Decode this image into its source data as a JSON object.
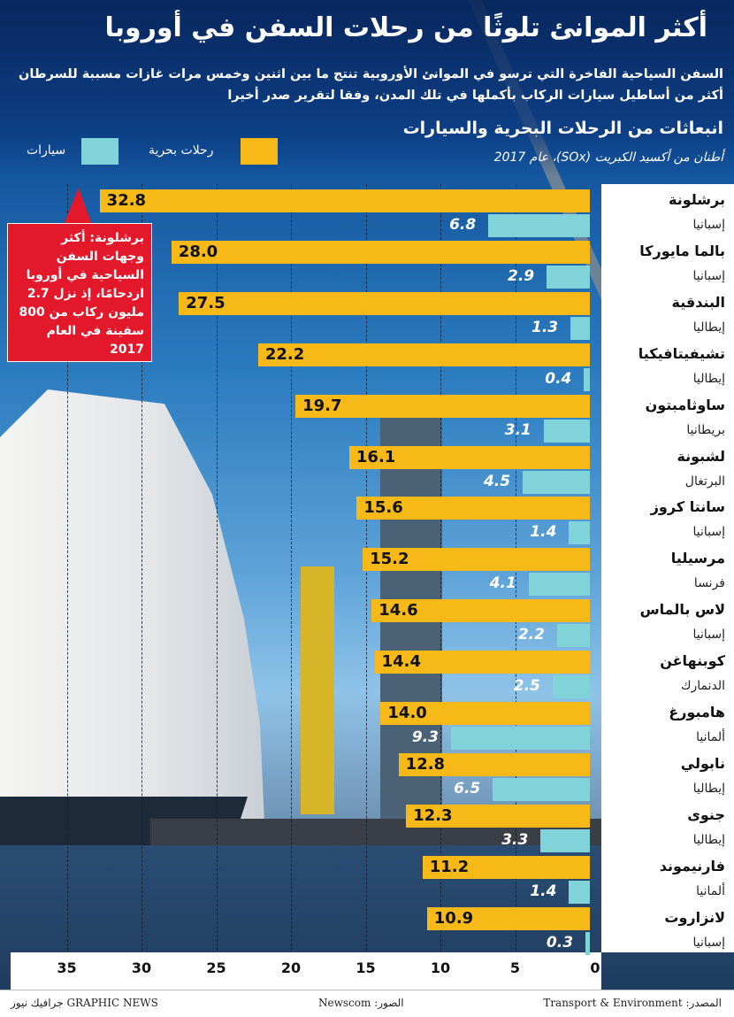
{
  "title": "أكثر الموانئ تلوثًا من رحلات السفن في أوروبا",
  "subtitle_line1": "السفن السياحية الفاخرة التي ترسو في الموانئ الأوروبية تنتج ما بين اثنين وخمس مرات غازات مسببة للسرطان",
  "subtitle_line2": "أكثر من أساطيل سيارات الركاب بأكملها في تلك المدن، وفقا لتقرير صدر أخيرا",
  "callout": "برشلونة: أكثر وجهات السفن السياحية في أوروبا ازدحامًا، إذ نزل 2.7 مليون ركاب من 800 سفينة في العام 2017",
  "footer": {
    "source": "المصدر: Transport & Environment",
    "photos": "الصور: Newscom",
    "brand": "GRAPHIC NEWS جرافيك نيوز"
  },
  "colors": {
    "cruise": "#f6b917",
    "cars": "#7fd3d9",
    "callout": "#e3182b"
  },
  "chart_data": {
    "type": "bar",
    "orientation": "horizontal",
    "title": "انبعاثات من الرحلات البحرية والسيارات",
    "units_label": "أطنان من أكسيد الكبريت (SOx)، عام 2017",
    "legend_position": "top",
    "series": [
      {
        "name": "رحلات بحرية",
        "values": [
          32.8,
          28.0,
          27.5,
          22.2,
          19.7,
          16.1,
          15.6,
          15.2,
          14.6,
          14.4,
          14.0,
          12.8,
          12.3,
          11.2,
          10.9
        ]
      },
      {
        "name": "سيارات",
        "values": [
          6.8,
          2.9,
          1.3,
          0.4,
          3.1,
          4.5,
          1.4,
          4.1,
          2.2,
          2.5,
          9.3,
          6.5,
          3.3,
          1.4,
          0.3
        ]
      }
    ],
    "categories": [
      "برشلونة",
      "بالما مايوركا",
      "البندقية",
      "تشيفيتافيكيا",
      "ساوثامبتون",
      "لشبونة",
      "سانتا كروز",
      "مرسيليا",
      "لاس بالماس",
      "كوبنهاغن",
      "هامبورغ",
      "نابولي",
      "جنوى",
      "فارنيموند",
      "لانزاروت"
    ],
    "countries": [
      "إسبانيا",
      "إسبانيا",
      "إيطاليا",
      "إيطاليا",
      "بريطانيا",
      "البرتغال",
      "إسبانيا",
      "فرنسا",
      "إسبانيا",
      "الدنمارك",
      "ألمانيا",
      "إيطاليا",
      "إيطاليا",
      "ألمانيا",
      "إسبانيا"
    ],
    "xlim": [
      0,
      35
    ],
    "xticks": [
      35,
      30,
      25,
      20,
      15,
      10,
      5,
      0
    ],
    "x_reversed": true,
    "grid": true
  }
}
